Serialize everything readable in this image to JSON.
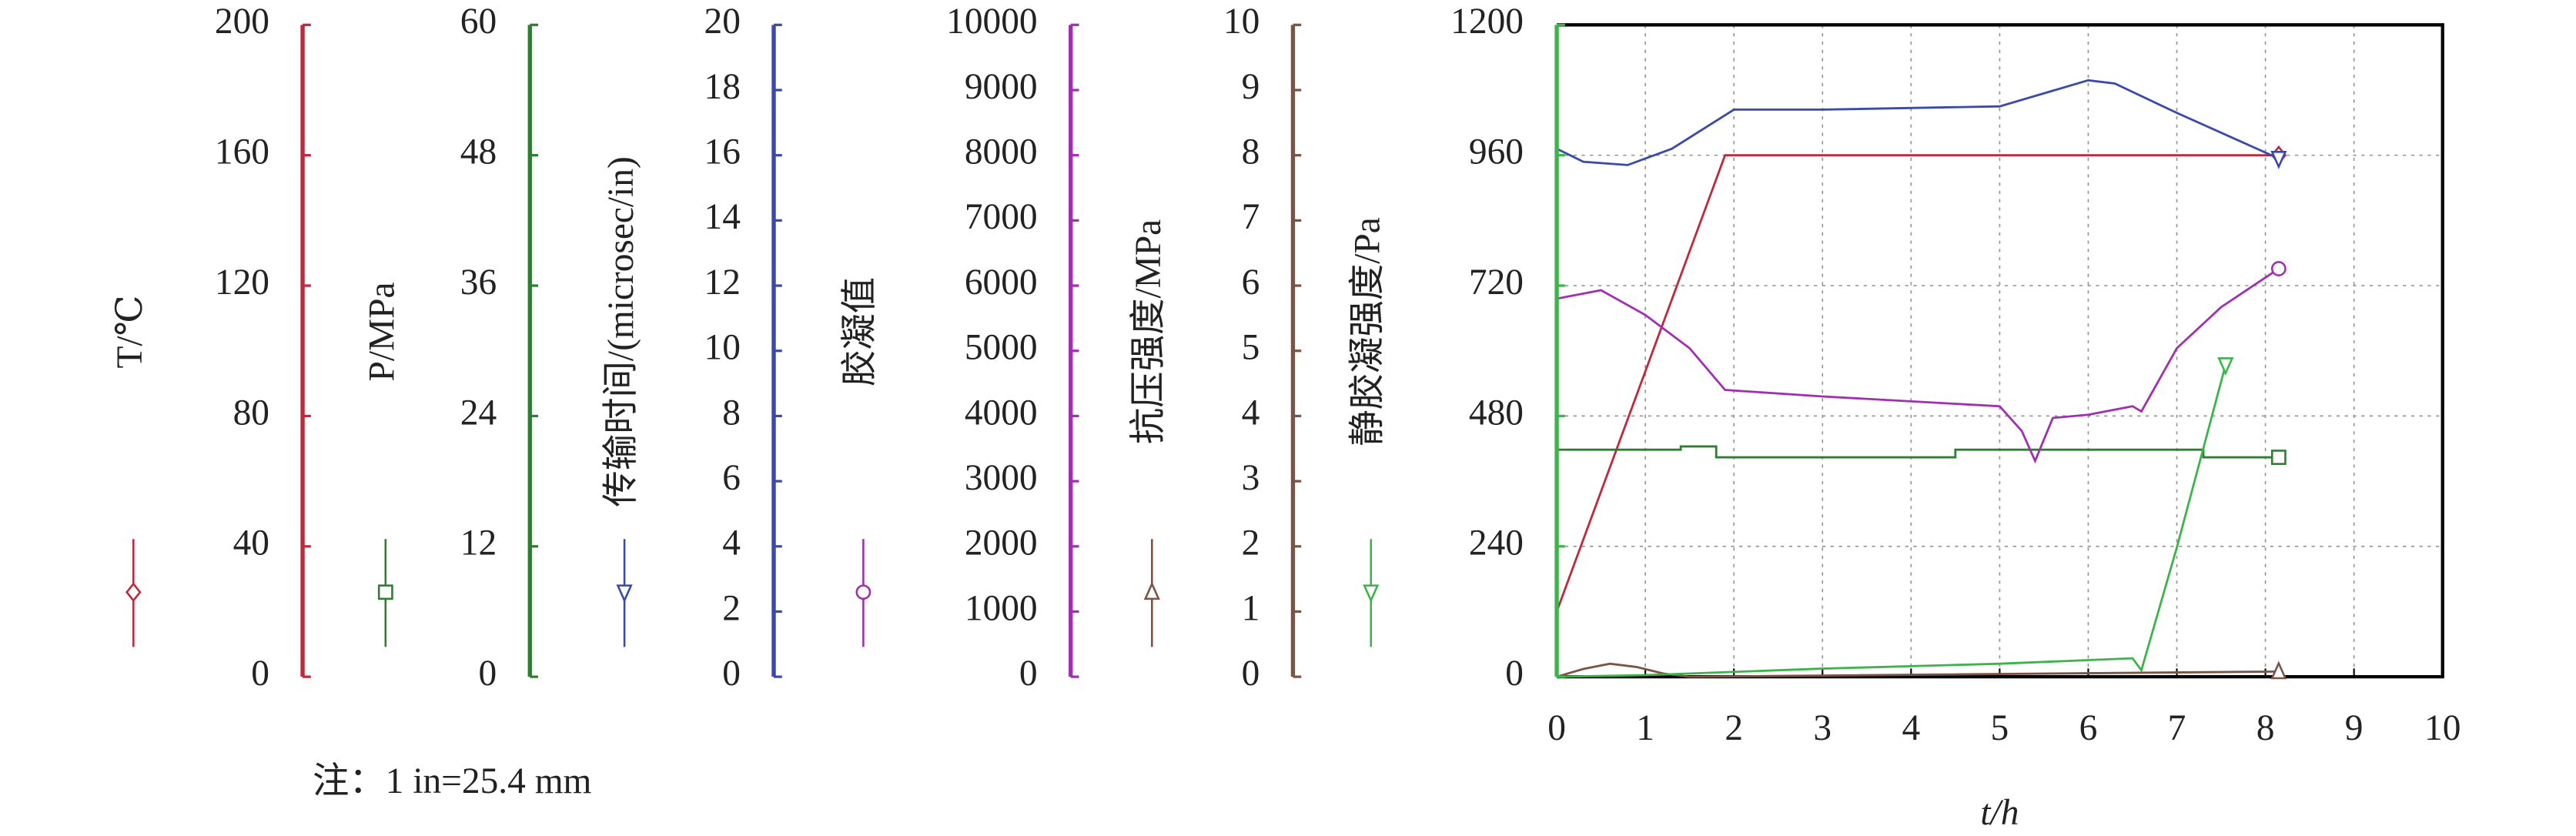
{
  "chart_data": {
    "type": "line",
    "x_label": "t/h",
    "note": "注：1 in=25.4 mm",
    "xlim": [
      0,
      10
    ],
    "xticks": [
      0,
      1,
      2,
      3,
      4,
      5,
      6,
      7,
      8,
      9,
      10
    ],
    "grid": true,
    "series": [
      {
        "name": "T/℃",
        "color": "#c0283c",
        "marker": "diamond",
        "ylim": [
          0,
          200
        ],
        "yticks": [
          0,
          40,
          80,
          120,
          160,
          200
        ],
        "x": [
          0,
          1.9,
          8.15
        ],
        "values": [
          20,
          160,
          160
        ]
      },
      {
        "name": "P/MPa",
        "color": "#2e7d32",
        "marker": "square",
        "ylim": [
          0,
          60
        ],
        "yticks": [
          0,
          12,
          24,
          36,
          48,
          60
        ],
        "x": [
          0,
          1.4,
          1.4,
          1.8,
          1.8,
          4.5,
          4.5,
          7.3,
          7.3,
          8.15
        ],
        "values": [
          20.9,
          20.9,
          21.2,
          21.2,
          20.2,
          20.2,
          20.9,
          20.9,
          20.2,
          20.2
        ]
      },
      {
        "name": "传输时间/(microsec/in)",
        "color": "#3a4aa8",
        "marker": "triangle-down",
        "ylim": [
          0,
          20
        ],
        "yticks": [
          0,
          2,
          4,
          6,
          8,
          10,
          12,
          14,
          16,
          18,
          20
        ],
        "x": [
          0,
          0.3,
          0.8,
          1.3,
          2,
          3,
          5,
          5.5,
          6,
          6.3,
          7,
          8.15
        ],
        "values": [
          16.2,
          15.8,
          15.7,
          16.2,
          17.4,
          17.4,
          17.5,
          17.9,
          18.3,
          18.2,
          17.3,
          15.9
        ]
      },
      {
        "name": "胶凝值",
        "color": "#a030b0",
        "marker": "circle",
        "ylim": [
          0,
          10000
        ],
        "yticks": [
          0,
          1000,
          2000,
          3000,
          4000,
          5000,
          6000,
          7000,
          8000,
          9000,
          10000
        ],
        "x": [
          0,
          0.5,
          1,
          1.5,
          1.9,
          3,
          5,
          5.25,
          5.4,
          5.6,
          6,
          6.5,
          6.6,
          7,
          7.5,
          8.15
        ],
        "values": [
          5800,
          5930,
          5550,
          5040,
          4400,
          4300,
          4150,
          3770,
          3310,
          3970,
          4020,
          4150,
          4070,
          5040,
          5670,
          6260
        ]
      },
      {
        "name": "抗压强度/MPa",
        "color": "#7b5444",
        "marker": "triangle-up",
        "ylim": [
          0,
          10
        ],
        "yticks": [
          0,
          1,
          2,
          3,
          4,
          5,
          6,
          7,
          8,
          9,
          10
        ],
        "x": [
          0,
          0.3,
          0.6,
          0.9,
          1.2,
          1.5,
          8.15
        ],
        "values": [
          0,
          0.12,
          0.2,
          0.15,
          0.05,
          0,
          0.08
        ]
      },
      {
        "name": "静胶凝强度/Pa",
        "color": "#3cb44b",
        "marker": "triangle-down",
        "ylim": [
          0,
          1200
        ],
        "yticks": [
          0,
          240,
          480,
          720,
          960,
          1200
        ],
        "x": [
          0,
          1,
          3,
          5,
          6.5,
          6.6,
          7,
          7.3,
          7.55
        ],
        "values": [
          0,
          3,
          15,
          24,
          34,
          12,
          238,
          421,
          574
        ]
      }
    ]
  }
}
